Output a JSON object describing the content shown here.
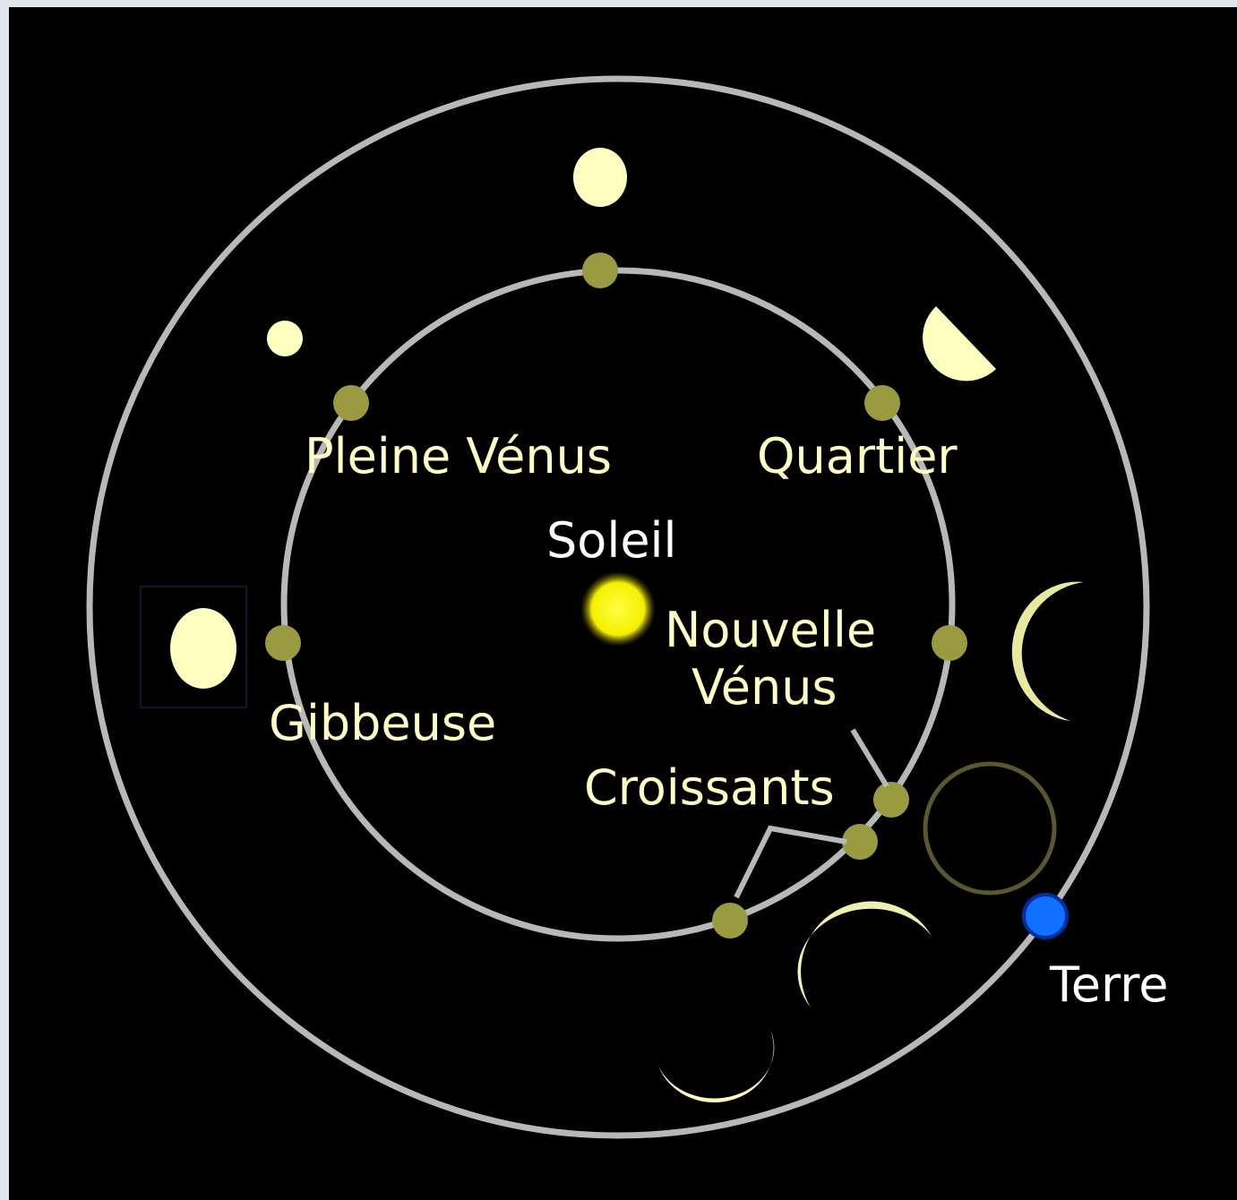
{
  "labels": {
    "pleine_venus": "Pleine Vénus",
    "quartier": "Quartier",
    "soleil": "Soleil",
    "nouvelle_venus": [
      "Nouvelle",
      "Vénus"
    ],
    "gibbeuse": "Gibbeuse",
    "croissants": "Croissants",
    "terre": "Terre"
  }
}
